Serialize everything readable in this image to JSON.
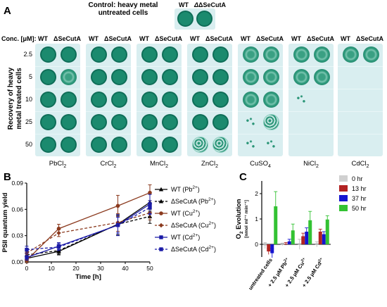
{
  "panel_a": {
    "letter": "A",
    "control_title_line1": "Control: heavy metal",
    "control_title_line2": "untreated cells",
    "wt_label": "WT",
    "mut_label": "ΔSeCutA",
    "conc_label": "Conc. [μM]:",
    "row_axis_label_line1": "Recovery of heavy",
    "row_axis_label_line2": "metal treated cells",
    "concentrations": [
      "2.5",
      "5",
      "10",
      "25",
      "50"
    ],
    "salts": [
      {
        "base": "PbCl",
        "sub": "2"
      },
      {
        "base": "CrCl",
        "sub": "2"
      },
      {
        "base": "MnCl",
        "sub": "2"
      },
      {
        "base": "ZnCl",
        "sub": "2"
      },
      {
        "base": "CuSO",
        "sub": "4"
      },
      {
        "base": "NiCl",
        "sub": "2"
      },
      {
        "base": "CdCl",
        "sub": "2"
      }
    ]
  },
  "panel_b": {
    "letter": "B",
    "chart_data": {
      "type": "line",
      "xlabel": "Time [h]",
      "ylabel": "PSII quantum yield",
      "xlim": [
        0,
        50
      ],
      "ylim": [
        0,
        0.09
      ],
      "x_ticks": [
        "0",
        "10",
        "20",
        "30",
        "40",
        "50"
      ],
      "y_ticks": [
        "0.00",
        "0.03",
        "0.06",
        "0.09"
      ],
      "x": [
        0,
        13,
        37,
        50
      ],
      "legend_position": "right",
      "series": [
        {
          "name": "WT (Pb2+)",
          "legend_base": "WT (Pb",
          "legend_sup": "2+",
          "legend_tail": ")",
          "color": "#000000",
          "dashed": false,
          "marker": "triangle",
          "values": [
            0.004,
            0.012,
            0.043,
            0.068
          ],
          "errors": [
            0.003,
            0.004,
            0.012,
            0.01
          ]
        },
        {
          "name": "ΔSeCutA (Pb2+)",
          "legend_base": "ΔSeCutA (Pb",
          "legend_sup": "2+",
          "legend_tail": ")",
          "color": "#000000",
          "dashed": true,
          "marker": "triangle",
          "values": [
            0.008,
            0.013,
            0.043,
            0.052
          ],
          "errors": [
            0.004,
            0.004,
            0.01,
            0.008
          ]
        },
        {
          "name": "WT (Cu2+)",
          "legend_base": "WT (Cu",
          "legend_sup": "2+",
          "legend_tail": ")",
          "color": "#8b3a1e",
          "dashed": false,
          "marker": "circle",
          "values": [
            0.002,
            0.038,
            0.064,
            0.079
          ],
          "errors": [
            0.003,
            0.005,
            0.012,
            0.009
          ]
        },
        {
          "name": "ΔSeCutA (Cu2+)",
          "legend_base": "ΔSeCutA (Cu",
          "legend_sup": "2+",
          "legend_tail": ")",
          "color": "#8b3a1e",
          "dashed": true,
          "marker": "diamond",
          "values": [
            0.01,
            0.033,
            0.045,
            0.056
          ],
          "errors": [
            0.003,
            0.004,
            0.01,
            0.008
          ]
        },
        {
          "name": "WT (Cd2+)",
          "legend_base": "WT (Cd",
          "legend_sup": "2+",
          "legend_tail": ")",
          "color": "#1a1aa6",
          "dashed": false,
          "marker": "square",
          "values": [
            0.005,
            0.018,
            0.042,
            0.066
          ],
          "errors": [
            0.003,
            0.004,
            0.012,
            0.011
          ]
        },
        {
          "name": "ΔSeCutA (Cd2+)",
          "legend_base": "ΔSeCutA (Cd",
          "legend_sup": "2+",
          "legend_tail": ")",
          "color": "#1a1aa6",
          "dashed": true,
          "marker": "square",
          "values": [
            0.014,
            0.017,
            0.042,
            0.062
          ],
          "errors": [
            0.004,
            0.004,
            0.009,
            0.008
          ]
        }
      ]
    }
  },
  "panel_c": {
    "letter": "C",
    "chart_data": {
      "type": "bar",
      "ylabel_main": "O",
      "ylabel_sub": "2",
      "ylabel_tail": " Evolution",
      "yunit": "[nmol ml⁻¹ min⁻¹]",
      "ylim": [
        -0.5,
        2.5
      ],
      "y_ticks": [
        "0",
        "1",
        "2"
      ],
      "legend_position": "top-right",
      "categories": [
        {
          "base": "untreated cells",
          "sup": "",
          "tail": ""
        },
        {
          "base": "+ 2.5 μM Pb",
          "sup": "2+",
          "tail": ""
        },
        {
          "base": "+ 2.5 μM Cu",
          "sup": "2+",
          "tail": ""
        },
        {
          "base": "+ 2.5 μM Cd",
          "sup": "2+",
          "tail": ""
        }
      ],
      "series": [
        {
          "name": "0 hr",
          "color": "#d0d0d0",
          "values": [
            -0.05,
            0.0,
            0.0,
            0.0
          ],
          "errors": [
            0.12,
            0.05,
            0.2,
            0.1
          ]
        },
        {
          "name": "13 hr",
          "color": "#b22222",
          "values": [
            -0.28,
            0.02,
            0.32,
            0.5
          ],
          "errors": [
            0.12,
            0.05,
            0.12,
            0.1
          ]
        },
        {
          "name": "37 hr",
          "color": "#1515d0",
          "values": [
            -0.35,
            0.12,
            0.5,
            0.4
          ],
          "errors": [
            0.18,
            0.08,
            0.15,
            0.1
          ]
        },
        {
          "name": "50 hr",
          "color": "#33c233",
          "values": [
            1.5,
            0.55,
            0.95,
            0.98
          ],
          "errors": [
            0.58,
            0.25,
            0.35,
            0.15
          ]
        }
      ]
    }
  }
}
